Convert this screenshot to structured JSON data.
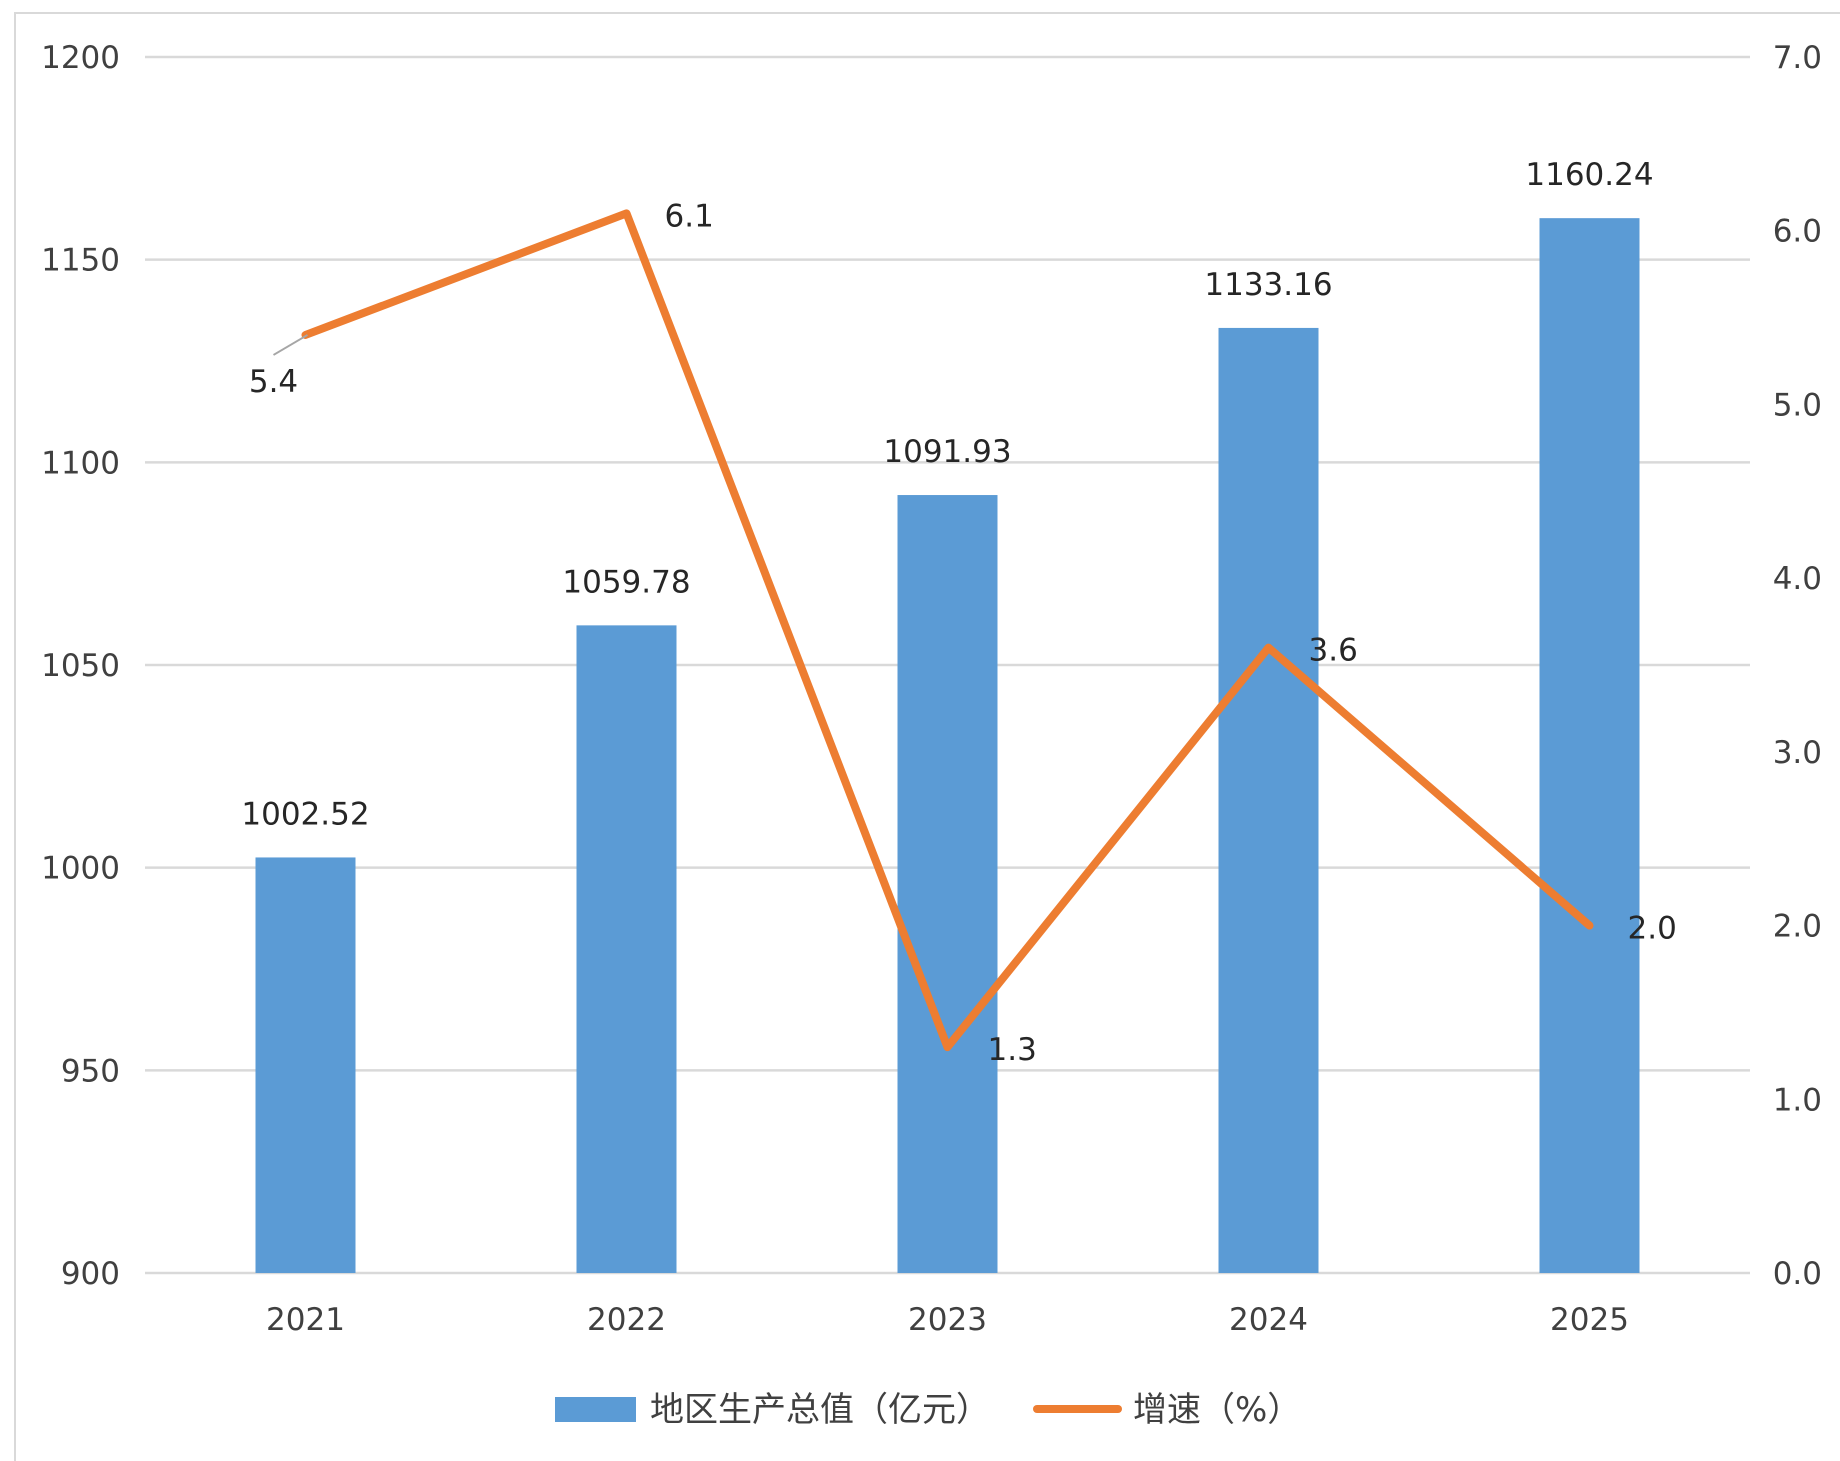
{
  "chart_data": {
    "type": "bar",
    "categories": [
      "2021",
      "2022",
      "2023",
      "2024",
      "2025"
    ],
    "series": [
      {
        "name": "地区生产总值（亿元）",
        "type": "bar",
        "axis": "left",
        "values": [
          1002.52,
          1059.78,
          1091.93,
          1133.16,
          1160.24
        ],
        "labels": [
          "1002.52",
          "1059.78",
          "1091.93",
          "1133.16",
          "1160.24"
        ],
        "color": "#5b9bd5"
      },
      {
        "name": "增速（%）",
        "type": "line",
        "axis": "right",
        "values": [
          5.4,
          6.1,
          1.3,
          3.6,
          2.0
        ],
        "labels": [
          "5.4",
          "6.1",
          "1.3",
          "3.6",
          "2.0"
        ],
        "color": "#ed7d31"
      }
    ],
    "y_left": {
      "ylim": [
        900,
        1200
      ],
      "ticks": [
        "900",
        "950",
        "1000",
        "1050",
        "1100",
        "1150",
        "1200"
      ]
    },
    "y_right": {
      "ylim": [
        0,
        7
      ],
      "ticks": [
        "0.0",
        "1.0",
        "2.0",
        "3.0",
        "4.0",
        "5.0",
        "6.0",
        "7.0"
      ]
    },
    "grid": true,
    "legend": "bottom",
    "leader_line_color": "#a6a6a6",
    "gridline_color": "#d9d9d9"
  }
}
